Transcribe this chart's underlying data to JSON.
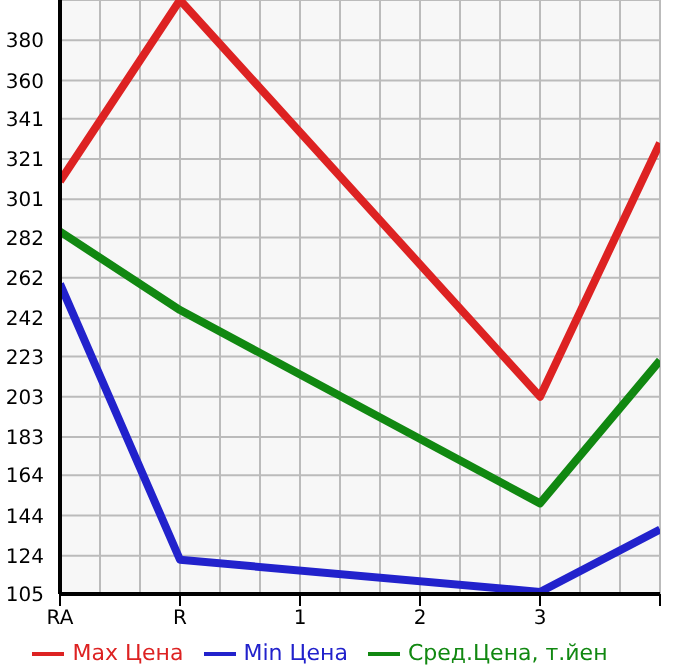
{
  "chart_data": {
    "type": "line",
    "categories": [
      "RA",
      "R",
      "1",
      "2",
      "3",
      null
    ],
    "ylim": [
      105,
      400
    ],
    "yticks": [
      105,
      124,
      144,
      164,
      183,
      203,
      223,
      242,
      262,
      282,
      301,
      321,
      341,
      360,
      380
    ],
    "grid": true,
    "legend": "bottom",
    "marker": "none",
    "series": [
      {
        "name": "Max Цена",
        "color": "#dd2222",
        "values": [
          310,
          400,
          null,
          null,
          203,
          329
        ]
      },
      {
        "name": "Min Цена",
        "color": "#2222cc",
        "values": [
          259,
          122,
          null,
          null,
          106,
          137
        ]
      },
      {
        "name": "Сред.Цена, т.йен",
        "color": "#118811",
        "values": [
          285,
          246,
          null,
          null,
          150,
          221
        ]
      }
    ]
  }
}
